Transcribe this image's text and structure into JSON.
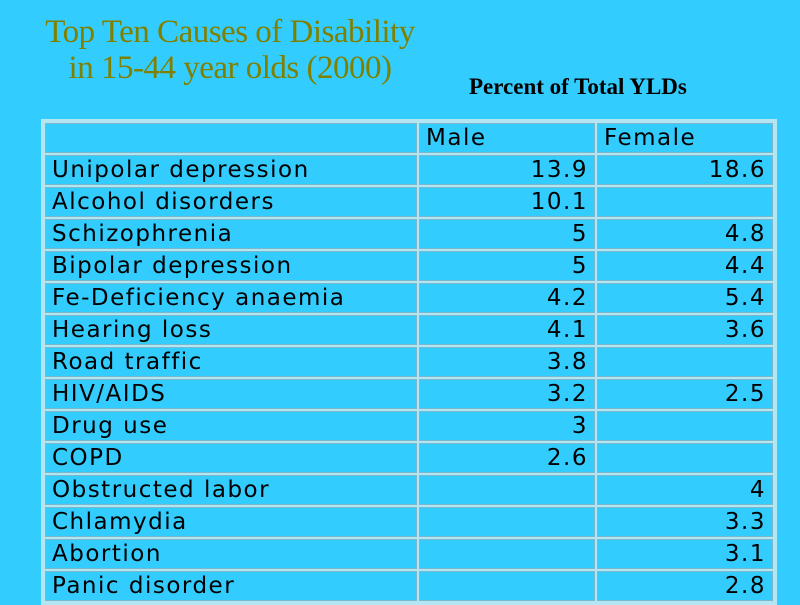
{
  "title_line1": "Top Ten Causes of Disability",
  "title_line2": "in 15-44 year olds (2000)",
  "subtitle": "Percent of Total YLDs",
  "table": {
    "columns": [
      "",
      "Male",
      "Female"
    ],
    "rows": [
      {
        "label": "Unipolar depression",
        "male": "13.9",
        "female": "18.6"
      },
      {
        "label": "Alcohol disorders",
        "male": "10.1",
        "female": ""
      },
      {
        "label": "Schizophrenia",
        "male": "5",
        "female": "4.8"
      },
      {
        "label": "Bipolar depression",
        "male": "5",
        "female": "4.4"
      },
      {
        "label": "Fe-Deficiency anaemia",
        "male": "4.2",
        "female": "5.4"
      },
      {
        "label": "Hearing loss",
        "male": "4.1",
        "female": "3.6"
      },
      {
        "label": "Road traffic",
        "male": "3.8",
        "female": ""
      },
      {
        "label": "HIV/AIDS",
        "male": "3.2",
        "female": "2.5"
      },
      {
        "label": "Drug use",
        "male": "3",
        "female": ""
      },
      {
        "label": "COPD",
        "male": "2.6",
        "female": ""
      },
      {
        "label": "Obstructed labor",
        "male": "",
        "female": "4"
      },
      {
        "label": "Chlamydia",
        "male": "",
        "female": "3.3"
      },
      {
        "label": "Abortion",
        "male": "",
        "female": "3.1"
      },
      {
        "label": "Panic disorder",
        "male": "",
        "female": "2.8"
      }
    ]
  },
  "colors": {
    "background": "#33ccff",
    "title": "#808000"
  }
}
